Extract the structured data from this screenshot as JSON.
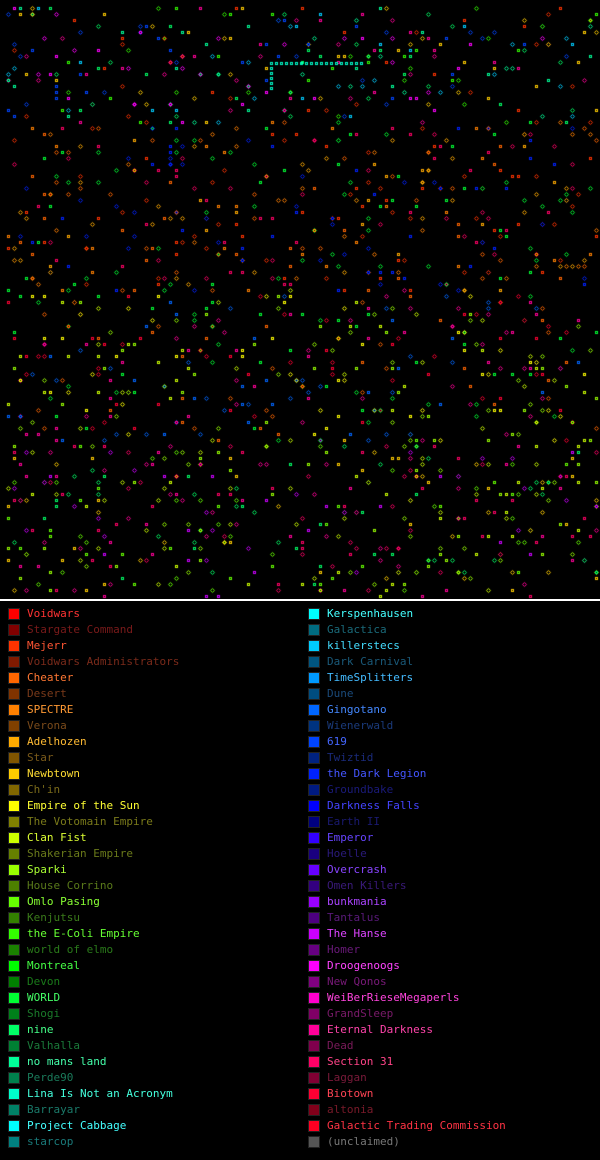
{
  "legend": {
    "left": [
      {
        "label": "Voidwars",
        "swatch": "#ff0000",
        "text": "#ff3333"
      },
      {
        "label": "Stargate Command",
        "swatch": "#800000",
        "text": "#7a1a1a"
      },
      {
        "label": "Mejerr",
        "swatch": "#ff3300",
        "text": "#ff5533"
      },
      {
        "label": "Voidwars Administrators",
        "swatch": "#801a00",
        "text": "#7a2a1a"
      },
      {
        "label": "Cheater",
        "swatch": "#ff6600",
        "text": "#ff7733"
      },
      {
        "label": "Desert",
        "swatch": "#803300",
        "text": "#7a3a1a"
      },
      {
        "label": "SPECTRE",
        "swatch": "#ff8000",
        "text": "#ff9933"
      },
      {
        "label": "Verona",
        "swatch": "#804000",
        "text": "#7a4a1a"
      },
      {
        "label": "Adelhozen",
        "swatch": "#ffaa00",
        "text": "#ffbb33"
      },
      {
        "label": "Star",
        "swatch": "#805500",
        "text": "#7a5a1a"
      },
      {
        "label": "Newbtown",
        "swatch": "#ffcc00",
        "text": "#ffdd33"
      },
      {
        "label": "Ch'in",
        "swatch": "#806600",
        "text": "#7a6a1a"
      },
      {
        "label": "Empire of the Sun",
        "swatch": "#ffff00",
        "text": "#ffff33"
      },
      {
        "label": "The Votomain Empire",
        "swatch": "#808000",
        "text": "#7a7a1a"
      },
      {
        "label": "Clan Fist",
        "swatch": "#ccff00",
        "text": "#ddff33"
      },
      {
        "label": "Shakerian Empire",
        "swatch": "#668000",
        "text": "#6a7a1a"
      },
      {
        "label": "Sparki",
        "swatch": "#99ff00",
        "text": "#aaff33"
      },
      {
        "label": "House Corrino",
        "swatch": "#4d8000",
        "text": "#5a7a1a"
      },
      {
        "label": "Omlo Pasing",
        "swatch": "#66ff00",
        "text": "#88ff33"
      },
      {
        "label": "Kenjutsu",
        "swatch": "#338000",
        "text": "#3a7a1a"
      },
      {
        "label": "the E-Coli Empire",
        "swatch": "#33ff00",
        "text": "#66ff33"
      },
      {
        "label": "world of elmo",
        "swatch": "#1a8000",
        "text": "#2a7a1a"
      },
      {
        "label": "Montreal",
        "swatch": "#00ff00",
        "text": "#44ff44"
      },
      {
        "label": "Devon",
        "swatch": "#008000",
        "text": "#1a7a1a"
      },
      {
        "label": "WORLD",
        "swatch": "#00ff33",
        "text": "#44ff66"
      },
      {
        "label": "Shogi",
        "swatch": "#00801a",
        "text": "#1a7a2a"
      },
      {
        "label": "nine",
        "swatch": "#00ff66",
        "text": "#44ff88"
      },
      {
        "label": "Valhalla",
        "swatch": "#008033",
        "text": "#1a7a3a"
      },
      {
        "label": "no mans land",
        "swatch": "#00ff99",
        "text": "#44ffaa"
      },
      {
        "label": "Perde90",
        "swatch": "#00804d",
        "text": "#1a7a5a"
      },
      {
        "label": "Lina Is Not an Acronym",
        "swatch": "#00ffcc",
        "text": "#44ffdd"
      },
      {
        "label": "Barrayar",
        "swatch": "#008066",
        "text": "#1a7a6a"
      },
      {
        "label": "Project Cabbage",
        "swatch": "#00ffff",
        "text": "#44ffff"
      },
      {
        "label": "starcop",
        "swatch": "#008080",
        "text": "#1a7a7a"
      }
    ],
    "right": [
      {
        "label": "Kerspenhausen",
        "swatch": "#00ffff",
        "text": "#44ffff"
      },
      {
        "label": "Galactica",
        "swatch": "#006b80",
        "text": "#1a6a7a"
      },
      {
        "label": "killerstecs",
        "swatch": "#00ccff",
        "text": "#44ddff"
      },
      {
        "label": "Dark Carnival",
        "swatch": "#005580",
        "text": "#1a5a7a"
      },
      {
        "label": "TimeSplitters",
        "swatch": "#0099ff",
        "text": "#44bbff"
      },
      {
        "label": "Dune",
        "swatch": "#004d80",
        "text": "#1a4a7a"
      },
      {
        "label": "Gingotano",
        "swatch": "#0066ff",
        "text": "#4488ff"
      },
      {
        "label": "Wienerwald",
        "swatch": "#003380",
        "text": "#1a3a7a"
      },
      {
        "label": "619",
        "swatch": "#0044ff",
        "text": "#4466ff"
      },
      {
        "label": "Twiztid",
        "swatch": "#002280",
        "text": "#1a2a7a"
      },
      {
        "label": "the Dark Legion",
        "swatch": "#0022ff",
        "text": "#4455ff"
      },
      {
        "label": "Groundbake",
        "swatch": "#001a80",
        "text": "#1a1a7a"
      },
      {
        "label": "Darkness Falls",
        "swatch": "#0000ff",
        "text": "#4444ff"
      },
      {
        "label": "Earth II",
        "swatch": "#000080",
        "text": "#1a1a70"
      },
      {
        "label": "Emperor",
        "swatch": "#3300ff",
        "text": "#6644ff"
      },
      {
        "label": "Hoelle",
        "swatch": "#1a0080",
        "text": "#2a1a7a"
      },
      {
        "label": "Overcrash",
        "swatch": "#6600ff",
        "text": "#8844ff"
      },
      {
        "label": "Omen Killers",
        "swatch": "#330080",
        "text": "#3a1a7a"
      },
      {
        "label": "bunkmania",
        "swatch": "#9900ff",
        "text": "#aa44ff"
      },
      {
        "label": "Tantalus",
        "swatch": "#4d0080",
        "text": "#5a1a7a"
      },
      {
        "label": "The Hanse",
        "swatch": "#cc00ff",
        "text": "#dd44ff"
      },
      {
        "label": "Homer",
        "swatch": "#660080",
        "text": "#6a1a7a"
      },
      {
        "label": "Droogenoogs",
        "swatch": "#ff00ff",
        "text": "#ff44ff"
      },
      {
        "label": "New Qonos",
        "swatch": "#800080",
        "text": "#7a1a7a"
      },
      {
        "label": "WeiBerRieseMegaperls",
        "swatch": "#ff00cc",
        "text": "#ff44dd"
      },
      {
        "label": "GrandSleep",
        "swatch": "#800066",
        "text": "#7a1a6a"
      },
      {
        "label": "Eternal Darkness",
        "swatch": "#ff0099",
        "text": "#ff44aa"
      },
      {
        "label": "Dead",
        "swatch": "#80004d",
        "text": "#7a1a5a"
      },
      {
        "label": "Section 31",
        "swatch": "#ff0066",
        "text": "#ff4488"
      },
      {
        "label": "Laggan",
        "swatch": "#800033",
        "text": "#7a1a3a"
      },
      {
        "label": "Biotown",
        "swatch": "#ff0033",
        "text": "#ff4455"
      },
      {
        "label": "altonia",
        "swatch": "#80001a",
        "text": "#7a1a2a"
      },
      {
        "label": "Galactic Trading Commission",
        "swatch": "#ff0022",
        "text": "#ff3344"
      },
      {
        "label": "(unclaimed)",
        "swatch": "#555555",
        "text": "#777777"
      }
    ]
  }
}
